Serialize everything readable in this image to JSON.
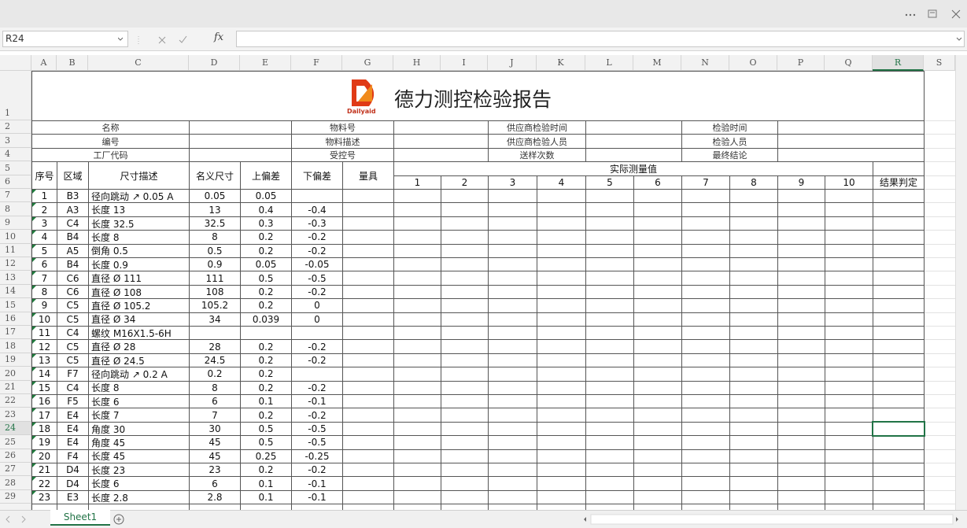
{
  "app": {
    "name_box": "R24",
    "fx": "fx",
    "columns": [
      "A",
      "B",
      "C",
      "D",
      "E",
      "F",
      "G",
      "H",
      "I",
      "J",
      "K",
      "L",
      "M",
      "N",
      "O",
      "P",
      "Q",
      "R",
      "S"
    ],
    "rows": [
      1,
      2,
      3,
      4,
      5,
      6,
      7,
      8,
      9,
      10,
      11,
      12,
      13,
      14,
      15,
      16,
      17,
      18,
      19,
      20,
      21,
      22,
      23,
      24,
      25,
      26,
      27,
      28,
      29
    ],
    "sheet_tab": "Sheet1"
  },
  "report": {
    "logo": "Dailyaid",
    "title": "德力测控检验报告",
    "info": [
      [
        "名称",
        "物料号",
        "供应商检验时间",
        "检验时间"
      ],
      [
        "编号",
        "物料描述",
        "供应商检验人员",
        "检验人员"
      ],
      [
        "工厂代码",
        "受控号",
        "送样次数",
        "最终结论"
      ]
    ],
    "headers": {
      "no": "序号",
      "area": "区域",
      "desc": "尺寸描述",
      "nominal": "名义尺寸",
      "upper": "上偏差",
      "lower": "下偏差",
      "gauge": "量具",
      "measured": "实际测量值",
      "result": "结果判定"
    },
    "measure_nos": [
      1,
      2,
      3,
      4,
      5,
      6,
      7,
      8,
      9,
      10
    ],
    "items": [
      {
        "no": 1,
        "area": "B3",
        "desc": "径向跳动 ↗ 0.05 A",
        "nominal": 0.05,
        "upper": 0.05
      },
      {
        "no": 2,
        "area": "A3",
        "desc": "长度 13",
        "nominal": 13,
        "upper": 0.4,
        "lower": -0.4
      },
      {
        "no": 3,
        "area": "C4",
        "desc": "长度 32.5",
        "nominal": 32.5,
        "upper": 0.3,
        "lower": -0.3
      },
      {
        "no": 4,
        "area": "B4",
        "desc": "长度 8",
        "nominal": 8,
        "upper": 0.2,
        "lower": -0.2
      },
      {
        "no": 5,
        "area": "A5",
        "desc": "倒角 0.5",
        "nominal": 0.5,
        "upper": 0.2,
        "lower": -0.2
      },
      {
        "no": 6,
        "area": "B4",
        "desc": "长度 0.9",
        "nominal": 0.9,
        "upper": 0.05,
        "lower": -0.05
      },
      {
        "no": 7,
        "area": "C6",
        "desc": "直径 Ø 111",
        "nominal": 111,
        "upper": 0.5,
        "lower": -0.5
      },
      {
        "no": 8,
        "area": "C6",
        "desc": "直径 Ø 108",
        "nominal": 108,
        "upper": 0.2,
        "lower": -0.2
      },
      {
        "no": 9,
        "area": "C5",
        "desc": "直径 Ø 105.2",
        "nominal": 105.2,
        "upper": 0.2,
        "lower": 0
      },
      {
        "no": 10,
        "area": "C5",
        "desc": "直径 Ø 34",
        "nominal": 34,
        "upper": 0.039,
        "lower": 0
      },
      {
        "no": 11,
        "area": "C4",
        "desc": "螺纹 M16X1.5-6H"
      },
      {
        "no": 12,
        "area": "C5",
        "desc": "直径 Ø 28",
        "nominal": 28,
        "upper": 0.2,
        "lower": -0.2
      },
      {
        "no": 13,
        "area": "C5",
        "desc": "直径 Ø 24.5",
        "nominal": 24.5,
        "upper": 0.2,
        "lower": -0.2
      },
      {
        "no": 14,
        "area": "F7",
        "desc": "径向跳动 ↗ 0.2 A",
        "nominal": 0.2,
        "upper": 0.2
      },
      {
        "no": 15,
        "area": "C4",
        "desc": "长度 8",
        "nominal": 8,
        "upper": 0.2,
        "lower": -0.2
      },
      {
        "no": 16,
        "area": "F5",
        "desc": "长度 6",
        "nominal": 6,
        "upper": 0.1,
        "lower": -0.1
      },
      {
        "no": 17,
        "area": "E4",
        "desc": "长度 7",
        "nominal": 7,
        "upper": 0.2,
        "lower": -0.2
      },
      {
        "no": 18,
        "area": "E4",
        "desc": "角度 30",
        "nominal": 30,
        "upper": 0.5,
        "lower": -0.5
      },
      {
        "no": 19,
        "area": "E4",
        "desc": "角度 45",
        "nominal": 45,
        "upper": 0.5,
        "lower": -0.5
      },
      {
        "no": 20,
        "area": "F4",
        "desc": "长度 45",
        "nominal": 45,
        "upper": 0.25,
        "lower": -0.25
      },
      {
        "no": 21,
        "area": "D4",
        "desc": "长度 23",
        "nominal": 23,
        "upper": 0.2,
        "lower": -0.2
      },
      {
        "no": 22,
        "area": "D4",
        "desc": "长度 6",
        "nominal": 6,
        "upper": 0.1,
        "lower": -0.1
      },
      {
        "no": 23,
        "area": "E3",
        "desc": "长度 2.8",
        "nominal": 2.8,
        "upper": 0.1,
        "lower": -0.1
      }
    ]
  }
}
